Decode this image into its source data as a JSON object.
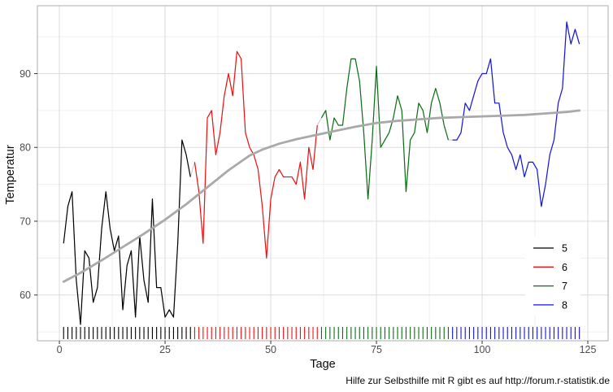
{
  "page": {
    "background": "#FFFFFF"
  },
  "chart_data": {
    "type": "line",
    "title": "",
    "xlabel": "Tage",
    "ylabel": "Temperatur",
    "caption": "Hilfe zur Selbsthilfe mit R gibt es auf http://forum.r-statistik.de",
    "x_ticks": [
      0,
      25,
      50,
      75,
      100,
      125
    ],
    "x_minor_ticks": [
      12.5,
      37.5,
      62.5,
      87.5,
      112.5
    ],
    "y_ticks": [
      60,
      70,
      80,
      90
    ],
    "y_minor_ticks": [
      55,
      65,
      75,
      85,
      95
    ],
    "xlim": [
      -5.2,
      129.8
    ],
    "ylim": [
      53.8,
      99.2
    ],
    "grid": true,
    "legend_position": "inside-right",
    "legend_labels": [
      "5",
      "6",
      "7",
      "8"
    ],
    "series": [
      {
        "name": "5",
        "color": "#000000",
        "start_x": 1,
        "values": [
          67,
          72,
          74,
          62,
          56,
          66,
          65,
          59,
          61,
          69,
          74,
          69,
          66,
          68,
          58,
          64,
          66,
          57,
          68,
          62,
          59,
          73,
          61,
          61,
          57,
          58,
          57,
          67,
          81,
          79,
          76
        ]
      },
      {
        "name": "6",
        "color": "#EE1111",
        "start_x": 32,
        "values": [
          78,
          74,
          67,
          84,
          85,
          79,
          82,
          87,
          90,
          87,
          93,
          92,
          82,
          80,
          79,
          77,
          72,
          65,
          73,
          76,
          77,
          76,
          76,
          76,
          75,
          78,
          73,
          80,
          77,
          83
        ]
      },
      {
        "name": "7",
        "color": "#0B6E14",
        "start_x": 62,
        "values": [
          84,
          85,
          81,
          84,
          83,
          83,
          88,
          92,
          92,
          89,
          82,
          73,
          81,
          91,
          80,
          81,
          82,
          84,
          87,
          85,
          74,
          81,
          82,
          86,
          85,
          82,
          86,
          88,
          86,
          83,
          81
        ]
      },
      {
        "name": "8",
        "color": "#1414DC",
        "start_x": 93,
        "values": [
          81,
          81,
          82,
          86,
          85,
          87,
          89,
          90,
          90,
          92,
          86,
          86,
          82,
          80,
          79,
          77,
          79,
          76,
          78,
          78,
          77,
          72,
          75,
          79,
          81,
          86,
          88,
          97,
          94,
          96,
          94
        ]
      }
    ],
    "smooth": {
      "name": "trend",
      "color": "#A9A9A9",
      "width": 2.8,
      "points": [
        [
          1,
          61.8
        ],
        [
          5,
          63.0
        ],
        [
          10,
          64.7
        ],
        [
          15,
          66.5
        ],
        [
          20,
          68.3
        ],
        [
          25,
          70.2
        ],
        [
          30,
          72.3
        ],
        [
          35,
          74.6
        ],
        [
          40,
          76.9
        ],
        [
          45,
          78.9
        ],
        [
          48,
          79.7
        ],
        [
          52,
          80.5
        ],
        [
          56,
          81.1
        ],
        [
          60,
          81.6
        ],
        [
          65,
          82.2
        ],
        [
          70,
          82.8
        ],
        [
          75,
          83.3
        ],
        [
          80,
          83.6
        ],
        [
          85,
          83.8
        ],
        [
          90,
          84.0
        ],
        [
          95,
          84.1
        ],
        [
          100,
          84.2
        ],
        [
          105,
          84.3
        ],
        [
          110,
          84.4
        ],
        [
          115,
          84.6
        ],
        [
          120,
          84.8
        ],
        [
          123,
          85.0
        ]
      ]
    },
    "rug": {
      "show": true
    },
    "connector_color": "#C8C8C8"
  },
  "style": {
    "grid_major": "#DBDBDB",
    "grid_minor": "#EFEFEF",
    "panel_border": "#ACACAC",
    "tick_mark": "#333333",
    "tick_label_color": "#4D4D4D",
    "axis_title_color": "#0A0A0A",
    "caption_color": "#0A0A0A",
    "legend_bg": "#FFFFFF",
    "legend_label_color": "#000000"
  }
}
